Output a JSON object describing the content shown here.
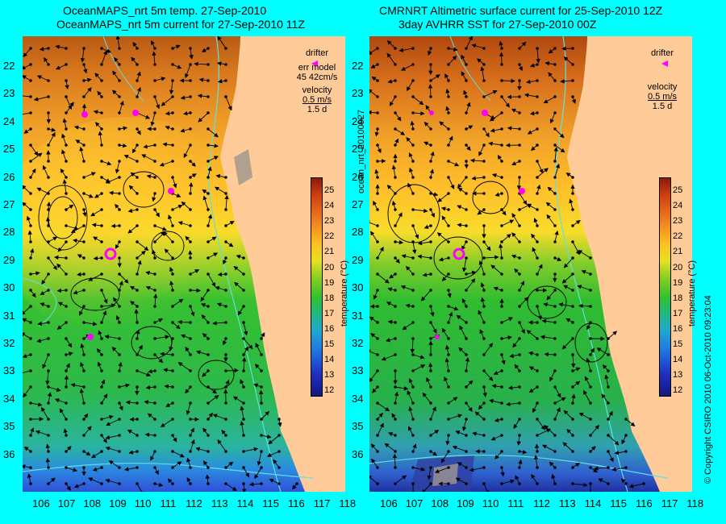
{
  "left_panel": {
    "title_line1": "OceanMAPS_nrt 5m temp. 27-Sep-2010",
    "title_line2": "OceanMAPS_nrt 5m current for 27-Sep-2010 11Z",
    "legend_drifter": "drifter",
    "legend_err1": "err model",
    "legend_err2": "45 42cm/s",
    "legend_velocity": "velocity",
    "legend_scale": "0.5 m/s",
    "legend_days": "1.5 d"
  },
  "right_panel": {
    "title_line1": "CMRNRT Altimetric surface current for 25-Sep-2010 12Z",
    "title_line2": "3day AVHRR SST for 27-Sep-2010 00Z",
    "legend_drifter": "drifter",
    "legend_velocity": "velocity",
    "legend_scale": "0.5 m/s",
    "legend_days": "1.5 d"
  },
  "colorbar": {
    "label": "temperature (°C)",
    "ticks": [
      "25",
      "24",
      "23",
      "22",
      "21",
      "20",
      "19",
      "18",
      "17",
      "16",
      "15",
      "14",
      "13",
      "12"
    ]
  },
  "side_label_left": "ocean_nrt_20100927",
  "side_label_right": "© Copyright CSIRO 2010   06-Oct-2010 09:23:04",
  "lat_labels": [
    "22",
    "23",
    "24",
    "25",
    "26",
    "27",
    "28",
    "29",
    "30",
    "31",
    "32",
    "33",
    "34",
    "35",
    "36"
  ],
  "lon_labels": [
    "106",
    "107",
    "108",
    "109",
    "110",
    "111",
    "112",
    "113",
    "114",
    "115",
    "116",
    "117",
    "118"
  ],
  "colors": {
    "background": "#00ffff",
    "land": "#ffcc99",
    "drifter": "#ff00ff"
  }
}
